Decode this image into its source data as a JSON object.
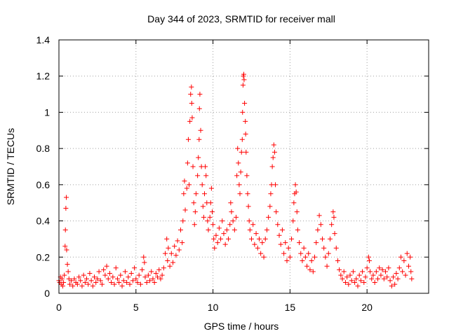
{
  "colors": {
    "background": "#ffffff",
    "axis": "#000000",
    "grid": "#a0a0a0",
    "series": "#ff0000"
  },
  "chart_data": {
    "type": "scatter",
    "title": "Day 344 of 2023, SRMTID for receiver mall",
    "xlabel": "GPS time / hours",
    "ylabel": "SRMTID / TECUs",
    "xlim": [
      0,
      24
    ],
    "ylim": [
      0,
      1.4
    ],
    "xticks": [
      0,
      5,
      10,
      15,
      20
    ],
    "xtick_labels": [
      "0",
      "5",
      "10",
      "15",
      "20"
    ],
    "yticks": [
      0,
      0.2,
      0.4,
      0.6,
      0.8,
      1.0,
      1.2,
      1.4
    ],
    "ytick_labels": [
      "0",
      "0.2",
      "0.4",
      "0.6",
      "0.8",
      "1",
      "1.2",
      "1.4"
    ],
    "grid": true,
    "marker": "plus",
    "series": [
      {
        "name": "SRMTID",
        "color": "#ff0000",
        "points": [
          [
            0.0,
            0.07
          ],
          [
            0.05,
            0.06
          ],
          [
            0.1,
            0.09
          ],
          [
            0.15,
            0.05
          ],
          [
            0.2,
            0.08
          ],
          [
            0.25,
            0.04
          ],
          [
            0.3,
            0.06
          ],
          [
            0.35,
            0.1
          ],
          [
            0.4,
            0.26
          ],
          [
            0.42,
            0.35
          ],
          [
            0.45,
            0.47
          ],
          [
            0.48,
            0.53
          ],
          [
            0.5,
            0.24
          ],
          [
            0.55,
            0.16
          ],
          [
            0.6,
            0.12
          ],
          [
            0.65,
            0.08
          ],
          [
            0.7,
            0.05
          ],
          [
            0.8,
            0.07
          ],
          [
            0.9,
            0.04
          ],
          [
            1.0,
            0.08
          ],
          [
            1.1,
            0.06
          ],
          [
            1.2,
            0.05
          ],
          [
            1.3,
            0.09
          ],
          [
            1.4,
            0.07
          ],
          [
            1.5,
            0.04
          ],
          [
            1.6,
            0.1
          ],
          [
            1.7,
            0.06
          ],
          [
            1.8,
            0.08
          ],
          [
            1.9,
            0.05
          ],
          [
            2.0,
            0.11
          ],
          [
            2.1,
            0.07
          ],
          [
            2.2,
            0.04
          ],
          [
            2.3,
            0.09
          ],
          [
            2.4,
            0.06
          ],
          [
            2.5,
            0.08
          ],
          [
            2.6,
            0.12
          ],
          [
            2.7,
            0.07
          ],
          [
            2.8,
            0.05
          ],
          [
            2.9,
            0.13
          ],
          [
            3.0,
            0.1
          ],
          [
            3.1,
            0.15
          ],
          [
            3.2,
            0.08
          ],
          [
            3.3,
            0.11
          ],
          [
            3.4,
            0.06
          ],
          [
            3.5,
            0.09
          ],
          [
            3.6,
            0.05
          ],
          [
            3.7,
            0.14
          ],
          [
            3.8,
            0.08
          ],
          [
            3.9,
            0.06
          ],
          [
            4.0,
            0.1
          ],
          [
            4.1,
            0.04
          ],
          [
            4.2,
            0.07
          ],
          [
            4.3,
            0.12
          ],
          [
            4.4,
            0.06
          ],
          [
            4.5,
            0.09
          ],
          [
            4.6,
            0.05
          ],
          [
            4.7,
            0.11
          ],
          [
            4.8,
            0.07
          ],
          [
            4.9,
            0.14
          ],
          [
            5.0,
            0.08
          ],
          [
            5.1,
            0.06
          ],
          [
            5.2,
            0.1
          ],
          [
            5.3,
            0.05
          ],
          [
            5.4,
            0.13
          ],
          [
            5.5,
            0.2
          ],
          [
            5.55,
            0.17
          ],
          [
            5.6,
            0.09
          ],
          [
            5.7,
            0.06
          ],
          [
            5.8,
            0.1
          ],
          [
            5.9,
            0.07
          ],
          [
            6.0,
            0.12
          ],
          [
            6.1,
            0.08
          ],
          [
            6.2,
            0.06
          ],
          [
            6.3,
            0.11
          ],
          [
            6.4,
            0.09
          ],
          [
            6.5,
            0.13
          ],
          [
            6.6,
            0.08
          ],
          [
            6.7,
            0.1
          ],
          [
            6.8,
            0.14
          ],
          [
            6.9,
            0.22
          ],
          [
            7.0,
            0.3
          ],
          [
            7.05,
            0.18
          ],
          [
            7.1,
            0.25
          ],
          [
            7.2,
            0.15
          ],
          [
            7.3,
            0.22
          ],
          [
            7.4,
            0.17
          ],
          [
            7.5,
            0.26
          ],
          [
            7.6,
            0.21
          ],
          [
            7.7,
            0.29
          ],
          [
            7.8,
            0.24
          ],
          [
            7.9,
            0.35
          ],
          [
            8.0,
            0.28
          ],
          [
            8.05,
            0.4
          ],
          [
            8.1,
            0.55
          ],
          [
            8.15,
            0.62
          ],
          [
            8.2,
            0.46
          ],
          [
            8.3,
            0.58
          ],
          [
            8.35,
            0.72
          ],
          [
            8.4,
            0.85
          ],
          [
            8.45,
            0.6
          ],
          [
            8.5,
            0.95
          ],
          [
            8.55,
            1.1
          ],
          [
            8.6,
            1.14
          ],
          [
            8.62,
            1.05
          ],
          [
            8.65,
            0.97
          ],
          [
            8.7,
            0.7
          ],
          [
            8.75,
            0.5
          ],
          [
            8.8,
            0.38
          ],
          [
            8.85,
            0.45
          ],
          [
            8.9,
            0.55
          ],
          [
            9.0,
            0.65
          ],
          [
            9.05,
            0.75
          ],
          [
            9.1,
            0.85
          ],
          [
            9.12,
            1.02
          ],
          [
            9.15,
            1.1
          ],
          [
            9.2,
            0.9
          ],
          [
            9.25,
            0.7
          ],
          [
            9.3,
            0.6
          ],
          [
            9.35,
            0.48
          ],
          [
            9.4,
            0.42
          ],
          [
            9.45,
            0.55
          ],
          [
            9.5,
            0.7
          ],
          [
            9.55,
            0.65
          ],
          [
            9.6,
            0.5
          ],
          [
            9.65,
            0.4
          ],
          [
            9.7,
            0.35
          ],
          [
            9.8,
            0.42
          ],
          [
            9.85,
            0.5
          ],
          [
            9.9,
            0.58
          ],
          [
            9.95,
            0.45
          ],
          [
            10.0,
            0.38
          ],
          [
            10.05,
            0.3
          ],
          [
            10.1,
            0.25
          ],
          [
            10.2,
            0.32
          ],
          [
            10.3,
            0.28
          ],
          [
            10.4,
            0.36
          ],
          [
            10.5,
            0.3
          ],
          [
            10.6,
            0.4
          ],
          [
            10.7,
            0.33
          ],
          [
            10.8,
            0.27
          ],
          [
            10.9,
            0.35
          ],
          [
            11.0,
            0.3
          ],
          [
            11.1,
            0.38
          ],
          [
            11.15,
            0.5
          ],
          [
            11.2,
            0.45
          ],
          [
            11.3,
            0.4
          ],
          [
            11.4,
            0.35
          ],
          [
            11.5,
            0.42
          ],
          [
            11.55,
            0.65
          ],
          [
            11.6,
            0.8
          ],
          [
            11.65,
            0.72
          ],
          [
            11.7,
            0.6
          ],
          [
            11.75,
            0.55
          ],
          [
            11.8,
            0.67
          ],
          [
            11.85,
            0.78
          ],
          [
            11.9,
            0.85
          ],
          [
            11.92,
            1.0
          ],
          [
            11.95,
            1.15
          ],
          [
            11.97,
            1.2
          ],
          [
            12.0,
            1.21
          ],
          [
            12.02,
            1.18
          ],
          [
            12.05,
            1.05
          ],
          [
            12.1,
            0.95
          ],
          [
            12.12,
            0.88
          ],
          [
            12.15,
            0.78
          ],
          [
            12.2,
            0.65
          ],
          [
            12.25,
            0.55
          ],
          [
            12.3,
            0.48
          ],
          [
            12.35,
            0.4
          ],
          [
            12.4,
            0.35
          ],
          [
            12.5,
            0.3
          ],
          [
            12.6,
            0.38
          ],
          [
            12.7,
            0.27
          ],
          [
            12.8,
            0.33
          ],
          [
            12.9,
            0.25
          ],
          [
            13.0,
            0.3
          ],
          [
            13.1,
            0.22
          ],
          [
            13.2,
            0.28
          ],
          [
            13.3,
            0.2
          ],
          [
            13.4,
            0.3
          ],
          [
            13.5,
            0.35
          ],
          [
            13.6,
            0.42
          ],
          [
            13.7,
            0.48
          ],
          [
            13.75,
            0.55
          ],
          [
            13.8,
            0.6
          ],
          [
            13.85,
            0.7
          ],
          [
            13.9,
            0.75
          ],
          [
            13.95,
            0.82
          ],
          [
            14.0,
            0.78
          ],
          [
            14.05,
            0.6
          ],
          [
            14.1,
            0.45
          ],
          [
            14.2,
            0.38
          ],
          [
            14.3,
            0.32
          ],
          [
            14.4,
            0.27
          ],
          [
            14.5,
            0.35
          ],
          [
            14.6,
            0.22
          ],
          [
            14.7,
            0.28
          ],
          [
            14.8,
            0.18
          ],
          [
            14.9,
            0.25
          ],
          [
            15.0,
            0.2
          ],
          [
            15.1,
            0.3
          ],
          [
            15.2,
            0.4
          ],
          [
            15.25,
            0.5
          ],
          [
            15.3,
            0.55
          ],
          [
            15.35,
            0.6
          ],
          [
            15.4,
            0.56
          ],
          [
            15.45,
            0.45
          ],
          [
            15.5,
            0.35
          ],
          [
            15.6,
            0.28
          ],
          [
            15.7,
            0.22
          ],
          [
            15.8,
            0.18
          ],
          [
            15.9,
            0.25
          ],
          [
            16.0,
            0.2
          ],
          [
            16.1,
            0.15
          ],
          [
            16.2,
            0.22
          ],
          [
            16.3,
            0.13
          ],
          [
            16.4,
            0.18
          ],
          [
            16.5,
            0.12
          ],
          [
            16.6,
            0.2
          ],
          [
            16.7,
            0.28
          ],
          [
            16.8,
            0.35
          ],
          [
            16.9,
            0.43
          ],
          [
            17.0,
            0.38
          ],
          [
            17.1,
            0.3
          ],
          [
            17.2,
            0.25
          ],
          [
            17.3,
            0.2
          ],
          [
            17.4,
            0.15
          ],
          [
            17.5,
            0.22
          ],
          [
            17.6,
            0.3
          ],
          [
            17.7,
            0.38
          ],
          [
            17.8,
            0.45
          ],
          [
            17.85,
            0.42
          ],
          [
            17.9,
            0.33
          ],
          [
            18.0,
            0.25
          ],
          [
            18.1,
            0.18
          ],
          [
            18.2,
            0.13
          ],
          [
            18.3,
            0.1
          ],
          [
            18.4,
            0.08
          ],
          [
            18.5,
            0.12
          ],
          [
            18.6,
            0.06
          ],
          [
            18.7,
            0.09
          ],
          [
            18.8,
            0.05
          ],
          [
            18.9,
            0.1
          ],
          [
            19.0,
            0.07
          ],
          [
            19.1,
            0.12
          ],
          [
            19.2,
            0.06
          ],
          [
            19.3,
            0.08
          ],
          [
            19.4,
            0.04
          ],
          [
            19.5,
            0.1
          ],
          [
            19.6,
            0.07
          ],
          [
            19.7,
            0.12
          ],
          [
            19.8,
            0.06
          ],
          [
            19.9,
            0.09
          ],
          [
            20.0,
            0.14
          ],
          [
            20.1,
            0.2
          ],
          [
            20.15,
            0.18
          ],
          [
            20.2,
            0.12
          ],
          [
            20.3,
            0.08
          ],
          [
            20.4,
            0.1
          ],
          [
            20.5,
            0.06
          ],
          [
            20.6,
            0.12
          ],
          [
            20.7,
            0.08
          ],
          [
            20.8,
            0.14
          ],
          [
            20.9,
            0.1
          ],
          [
            21.0,
            0.13
          ],
          [
            21.1,
            0.08
          ],
          [
            21.2,
            0.12
          ],
          [
            21.3,
            0.09
          ],
          [
            21.4,
            0.14
          ],
          [
            21.5,
            0.07
          ],
          [
            21.6,
            0.04
          ],
          [
            21.7,
            0.09
          ],
          [
            21.8,
            0.05
          ],
          [
            21.9,
            0.11
          ],
          [
            22.0,
            0.08
          ],
          [
            22.1,
            0.14
          ],
          [
            22.2,
            0.2
          ],
          [
            22.3,
            0.12
          ],
          [
            22.4,
            0.18
          ],
          [
            22.5,
            0.1
          ],
          [
            22.6,
            0.22
          ],
          [
            22.7,
            0.15
          ],
          [
            22.8,
            0.2
          ],
          [
            22.85,
            0.12
          ],
          [
            22.9,
            0.08
          ]
        ]
      }
    ]
  }
}
